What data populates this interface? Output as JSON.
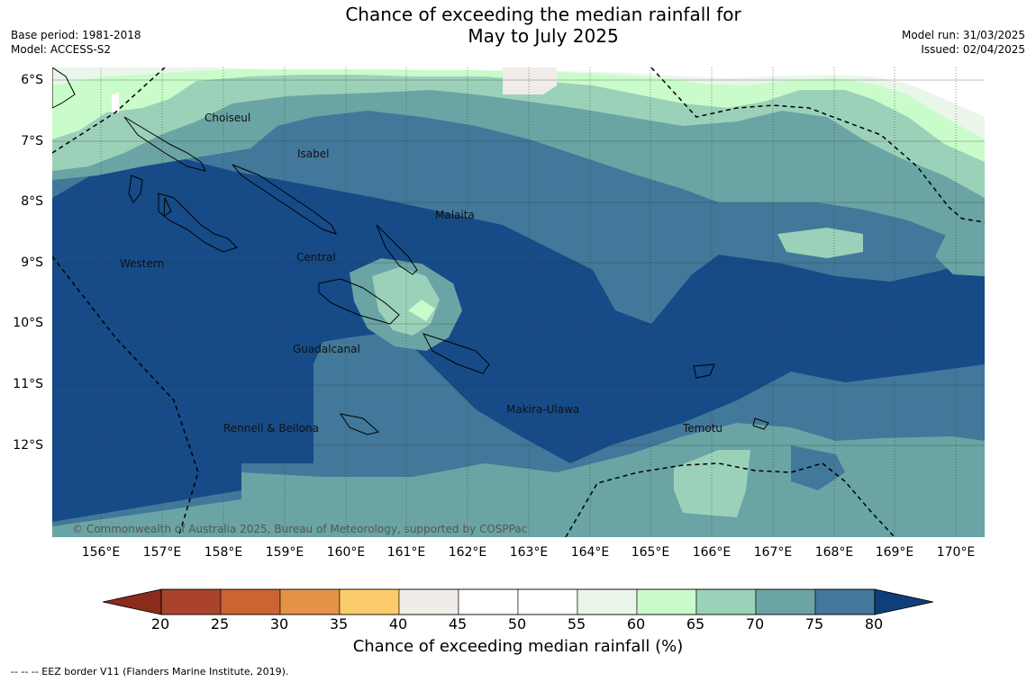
{
  "header": {
    "title_line1": "Chance of exceeding the median rainfall for",
    "title_line2": "May to July 2025",
    "base_period": "Base period: 1981-2018",
    "model": "Model: ACCESS-S2",
    "model_run": "Model run: 31/03/2025",
    "issued": "Issued: 02/04/2025"
  },
  "map": {
    "lon_labels": [
      "156°E",
      "157°E",
      "158°E",
      "159°E",
      "160°E",
      "161°E",
      "162°E",
      "163°E",
      "164°E",
      "165°E",
      "166°E",
      "167°E",
      "168°E",
      "169°E",
      "170°E"
    ],
    "lat_labels": [
      "6°S",
      "7°S",
      "8°S",
      "9°S",
      "10°S",
      "11°S",
      "12°S"
    ],
    "regions": [
      "Choiseul",
      "Isabel",
      "Malaita",
      "Central",
      "Western",
      "Guadalcanal",
      "Makira-Ulawa",
      "Rennell & Bellona",
      "Temotu"
    ],
    "copyright": "© Commonwealth of Australia 2025, Bureau of Meteorology, supported by COSPPac"
  },
  "colorbar": {
    "ticks": [
      "20",
      "25",
      "30",
      "35",
      "40",
      "45",
      "50",
      "55",
      "60",
      "65",
      "70",
      "75",
      "80"
    ],
    "colors": [
      "#a9432a",
      "#cd6332",
      "#e39246",
      "#fdcc6a",
      "#f0ede8",
      "#ffffff",
      "#ffffff",
      "#eaf6ea",
      "#c9fcca",
      "#9bd1b9",
      "#6ba4a4",
      "#427899",
      "#164b88"
    ],
    "title": "Chance of exceeding median rainfall (%)"
  },
  "footnote": "-- -- -- EEZ border V11 (Flanders Marine Institute, 2019)."
}
